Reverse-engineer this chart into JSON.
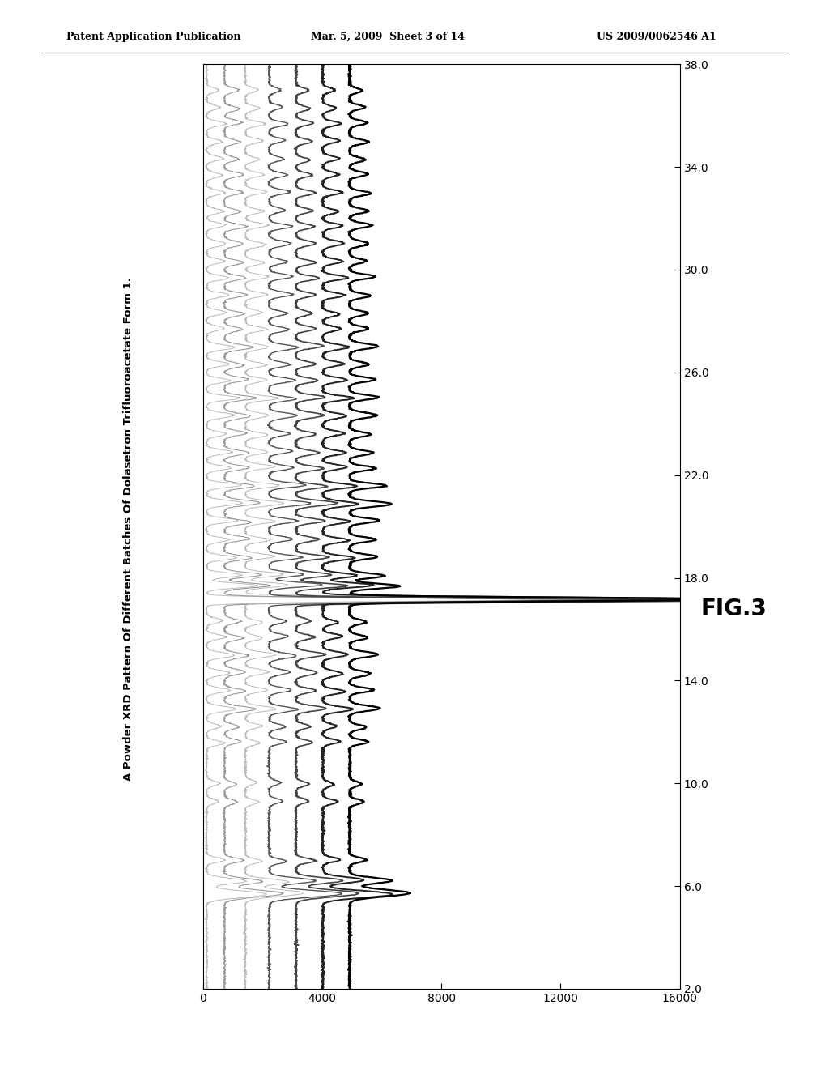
{
  "title": "A Powder XRD Pattern Of Different Batches Of Dolasetron Trifluoroacetate Form 1.",
  "fig_label": "FIG.3",
  "header_left": "Patent Application Publication",
  "header_center": "Mar. 5, 2009  Sheet 3 of 14",
  "header_right": "US 2009/0062546 A1",
  "theta_min": 2.0,
  "theta_max": 38.0,
  "int_min": 0,
  "int_max": 16000,
  "theta_ticks": [
    2.0,
    6.0,
    10.0,
    14.0,
    18.0,
    22.0,
    26.0,
    30.0,
    34.0,
    38.0
  ],
  "int_ticks": [
    0,
    4000,
    8000,
    12000,
    16000
  ],
  "background_color": "#ffffff",
  "num_traces": 7,
  "offsets": [
    0,
    600,
    1300,
    2100,
    3000,
    3900,
    4800
  ],
  "colors": [
    "#bbbbbb",
    "#999999",
    "#bbbbbb",
    "#555555",
    "#444444",
    "#222222",
    "#000000"
  ],
  "linewidths": [
    0.7,
    0.8,
    0.7,
    1.0,
    1.2,
    1.4,
    1.6
  ],
  "major_peak_trace": 5,
  "major_peak_intensity": 13500
}
